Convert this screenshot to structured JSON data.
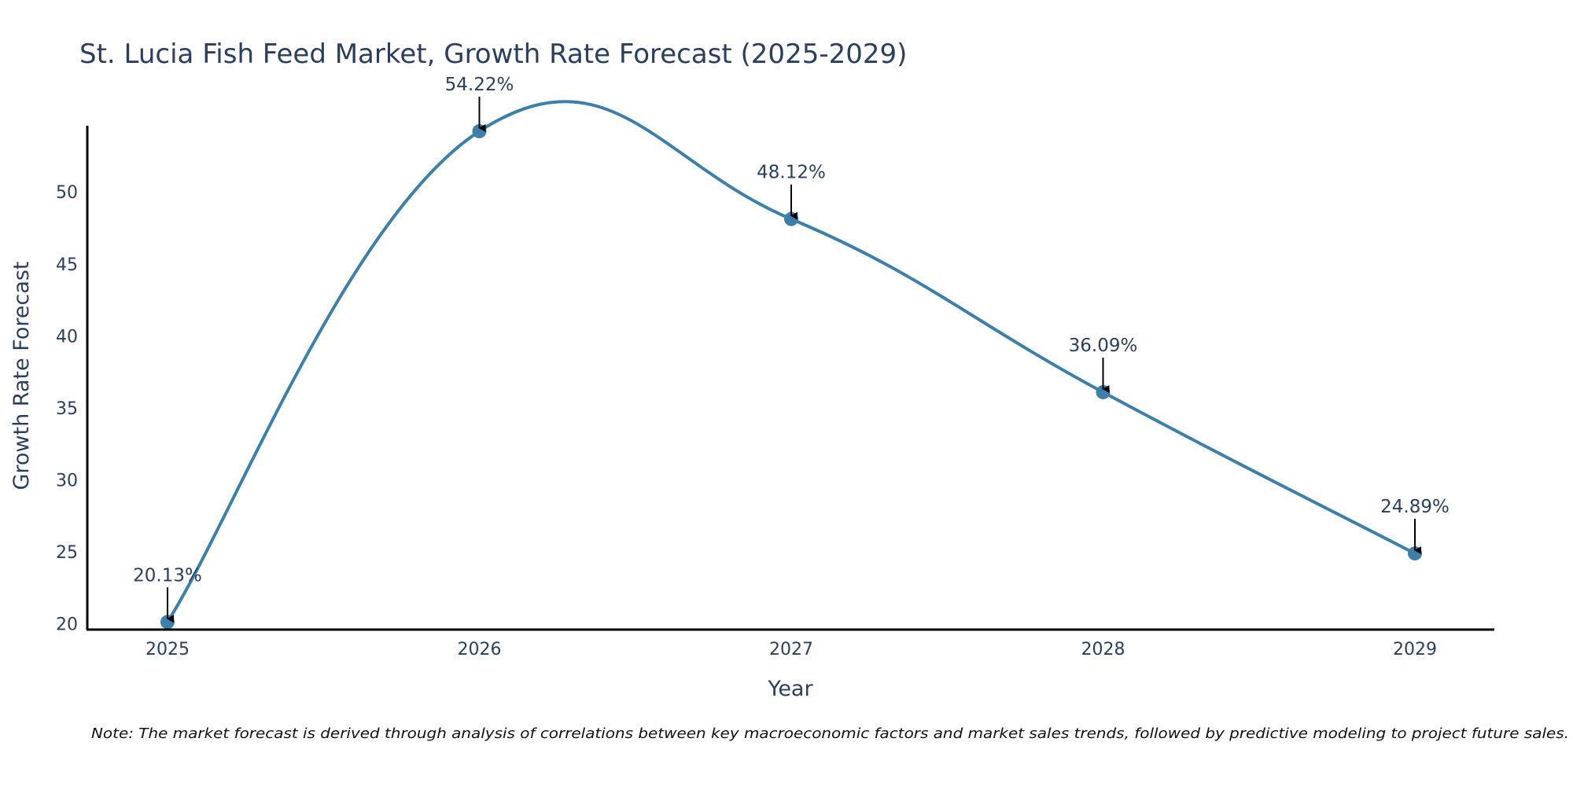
{
  "chart_data": {
    "type": "line",
    "title": "St. Lucia Fish Feed Market, Growth Rate Forecast (2025-2029)",
    "xlabel": "Year",
    "ylabel": "Growth Rate Forecast",
    "categories": [
      "2025",
      "2026",
      "2027",
      "2028",
      "2029"
    ],
    "values": [
      20.13,
      54.22,
      48.12,
      36.09,
      24.89
    ],
    "data_labels": [
      "20.13%",
      "54.22%",
      "48.12%",
      "36.09%",
      "24.89%"
    ],
    "y_ticks": [
      "20",
      "25",
      "30",
      "35",
      "40",
      "45",
      "50"
    ],
    "y_tick_values": [
      20,
      25,
      30,
      35,
      40,
      45,
      50
    ],
    "ylim": [
      19.6,
      54.6
    ],
    "line_shape": "spline",
    "grid": false,
    "colors": {
      "line": "#3d7fab",
      "marker": "#3d7fab",
      "arrow": "#000000",
      "axis": "#000000",
      "text": "#2a3f5f"
    }
  },
  "note": "Note: The market forecast is derived through analysis of correlations between key macroeconomic factors and market sales trends, followed by predictive modeling to project future sales."
}
